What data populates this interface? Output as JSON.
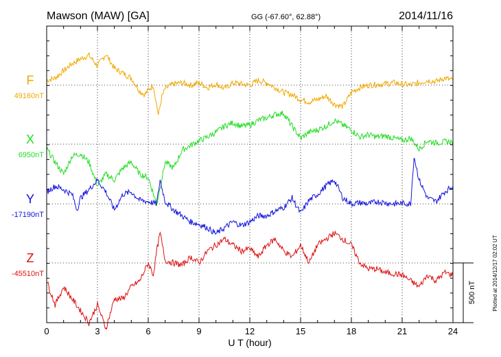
{
  "chart_data": {
    "type": "line",
    "title": "Mawson (MAW)  [GA]",
    "coords": "GG (-67.60°,  62.88°)",
    "date": "2014/11/16",
    "xlabel": "U T (hour)",
    "xlim": [
      0,
      24
    ],
    "x_ticks": [
      "0",
      "3",
      "6",
      "9",
      "12",
      "15",
      "18",
      "21",
      "24"
    ],
    "scale_label": "500 nT",
    "scale_nT": 500,
    "plotted_note": "Plotted at 2014/12/17 02:02 UT",
    "grid": true,
    "series": [
      {
        "name": "F",
        "baseline_label": "49160nT",
        "baseline_nT": 49160,
        "color": "#f0a800",
        "x": [
          0,
          0.5,
          1,
          1.5,
          2,
          2.5,
          3,
          3.5,
          4,
          4.5,
          5,
          5.5,
          5.8,
          6,
          6.3,
          6.6,
          6.8,
          7,
          7.5,
          8,
          8.5,
          9,
          9.5,
          10,
          10.5,
          11,
          11.5,
          12,
          12.5,
          13,
          13.5,
          14,
          14.5,
          15,
          15.5,
          16,
          16.5,
          17,
          17.5,
          18,
          18.5,
          19,
          19.5,
          20,
          20.5,
          21,
          21.5,
          22,
          22.5,
          23,
          23.5,
          24
        ],
        "values": [
          40,
          60,
          120,
          180,
          220,
          250,
          160,
          260,
          140,
          100,
          60,
          -50,
          -80,
          -40,
          0,
          -250,
          -100,
          -30,
          10,
          20,
          0,
          20,
          -20,
          10,
          -30,
          20,
          10,
          0,
          40,
          20,
          -20,
          -60,
          -80,
          -120,
          -140,
          -120,
          -90,
          -160,
          -180,
          -60,
          -20,
          0,
          5,
          10,
          20,
          10,
          0,
          20,
          40,
          30,
          60,
          40
        ]
      },
      {
        "name": "X",
        "baseline_label": "6950nT",
        "baseline_nT": 6950,
        "color": "#22dd22",
        "x": [
          0,
          0.5,
          1,
          1.5,
          2,
          2.5,
          3,
          3.5,
          4,
          4.5,
          5,
          5.5,
          6,
          6.5,
          7,
          7.5,
          8,
          8.5,
          9,
          9.5,
          10,
          10.5,
          11,
          11.5,
          12,
          12.5,
          13,
          13.5,
          14,
          14.5,
          15,
          15.5,
          16,
          16.5,
          17,
          17.5,
          18,
          18.5,
          19,
          19.5,
          20,
          20.5,
          21,
          21.5,
          22,
          22.5,
          23,
          23.5,
          24
        ],
        "values": [
          -40,
          -150,
          -250,
          -100,
          -80,
          -150,
          -350,
          -250,
          -300,
          -200,
          -150,
          -250,
          -280,
          -500,
          -150,
          -200,
          -50,
          -10,
          30,
          60,
          100,
          150,
          180,
          150,
          160,
          200,
          220,
          250,
          260,
          150,
          50,
          100,
          120,
          150,
          200,
          160,
          120,
          60,
          80,
          60,
          70,
          50,
          30,
          50,
          -40,
          30,
          10,
          20,
          20
        ]
      },
      {
        "name": "Y",
        "baseline_label": "-17190nT",
        "baseline_nT": -17190,
        "color": "#1010dd",
        "x": [
          0,
          0.5,
          1,
          1.5,
          1.8,
          2,
          2.5,
          3,
          3.5,
          4,
          4.5,
          5,
          5.5,
          6,
          6.5,
          6.7,
          7,
          7.5,
          8,
          8.5,
          9,
          9.5,
          10,
          10.5,
          11,
          11.5,
          12,
          12.5,
          13,
          13.5,
          14,
          14.5,
          15,
          15.5,
          16,
          16.5,
          17,
          17.5,
          18,
          18.5,
          19,
          19.5,
          20,
          20.5,
          21,
          21.5,
          21.7,
          22,
          22.5,
          23,
          23.5,
          24
        ],
        "values": [
          100,
          150,
          120,
          80,
          -50,
          50,
          120,
          200,
          100,
          -50,
          80,
          100,
          30,
          20,
          0,
          200,
          20,
          -50,
          -100,
          -150,
          -170,
          -200,
          -250,
          -200,
          -150,
          -180,
          -150,
          -100,
          -100,
          -60,
          -30,
          50,
          -80,
          30,
          80,
          150,
          200,
          50,
          0,
          10,
          0,
          20,
          10,
          0,
          5,
          0,
          400,
          200,
          50,
          20,
          100,
          150
        ]
      },
      {
        "name": "Z",
        "baseline_label": "-45510nT",
        "baseline_nT": -45510,
        "color": "#dd1010",
        "x": [
          0,
          0.5,
          1,
          1.5,
          2,
          2.5,
          3,
          3.5,
          4,
          4.5,
          5,
          5.5,
          6,
          6.3,
          6.5,
          6.7,
          7,
          7.5,
          8,
          8.5,
          9,
          9.5,
          10,
          10.5,
          11,
          11.5,
          12,
          12.5,
          13,
          13.5,
          14,
          14.5,
          15,
          15.5,
          16,
          16.5,
          17,
          17.5,
          18,
          18.5,
          19,
          19.5,
          20,
          20.5,
          21,
          21.5,
          22,
          22.5,
          23,
          23.5,
          24
        ],
        "values": [
          -150,
          -350,
          -200,
          -300,
          -400,
          -500,
          -350,
          -550,
          -300,
          -300,
          -200,
          -150,
          0,
          -100,
          100,
          250,
          20,
          0,
          -20,
          50,
          0,
          100,
          150,
          200,
          150,
          100,
          120,
          50,
          150,
          200,
          100,
          50,
          150,
          0,
          150,
          200,
          250,
          200,
          150,
          0,
          -50,
          -50,
          -80,
          -90,
          -100,
          -150,
          -200,
          -100,
          -150,
          -80,
          -100
        ]
      }
    ]
  }
}
